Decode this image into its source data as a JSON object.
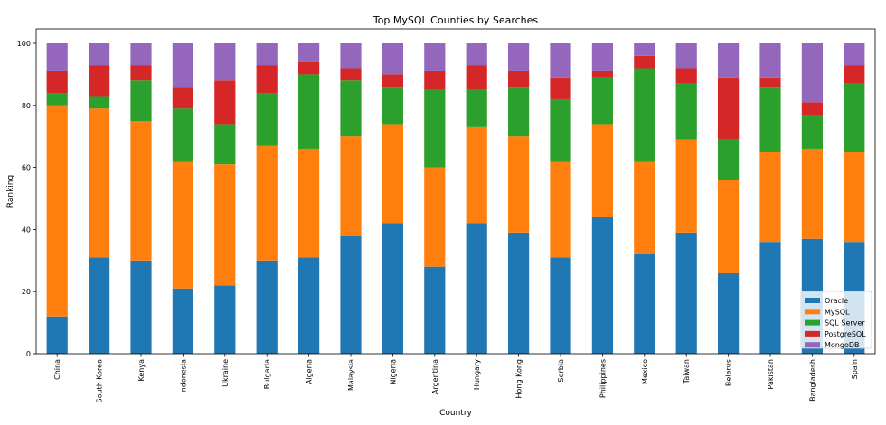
{
  "chart_data": {
    "type": "bar",
    "stacked": true,
    "title": "Top MySQL Counties by Searches",
    "xlabel": "Country",
    "ylabel": "Ranking",
    "ylim": [
      0,
      105
    ],
    "yticks": [
      0,
      20,
      40,
      60,
      80,
      100
    ],
    "grid": false,
    "legend_position": "bottom-right",
    "categories": [
      "China",
      "South Korea",
      "Kenya",
      "Indonesia",
      "Ukraine",
      "Bulgaria",
      "Algeria",
      "Malaysia",
      "Nigeria",
      "Argentina",
      "Hungary",
      "Hong Kong",
      "Serbia",
      "Philippines",
      "Mexico",
      "Taiwan",
      "Belarus",
      "Pakistan",
      "Bangladesh",
      "Spain"
    ],
    "series": [
      {
        "name": "Oracle",
        "color": "#1f77b4",
        "values": [
          12,
          31,
          30,
          21,
          22,
          30,
          31,
          38,
          42,
          28,
          42,
          39,
          31,
          44,
          32,
          39,
          26,
          36,
          37,
          36
        ]
      },
      {
        "name": "MySQL",
        "color": "#ff7f0e",
        "values": [
          68,
          48,
          45,
          41,
          39,
          37,
          35,
          32,
          32,
          32,
          31,
          31,
          31,
          30,
          30,
          30,
          30,
          29,
          29,
          29
        ]
      },
      {
        "name": "SQL Server",
        "color": "#2ca02c",
        "values": [
          4,
          4,
          13,
          17,
          13,
          17,
          24,
          18,
          12,
          25,
          12,
          16,
          20,
          15,
          30,
          18,
          13,
          21,
          11,
          22
        ]
      },
      {
        "name": "PostgreSQL",
        "color": "#d62728",
        "values": [
          7,
          10,
          5,
          7,
          14,
          9,
          4,
          4,
          4,
          6,
          8,
          5,
          7,
          2,
          4,
          5,
          20,
          3,
          4,
          6
        ]
      },
      {
        "name": "MongoDB",
        "color": "#9467bd",
        "values": [
          9,
          7,
          7,
          14,
          12,
          7,
          6,
          8,
          10,
          9,
          7,
          9,
          11,
          9,
          4,
          8,
          11,
          11,
          19,
          7
        ]
      }
    ]
  }
}
